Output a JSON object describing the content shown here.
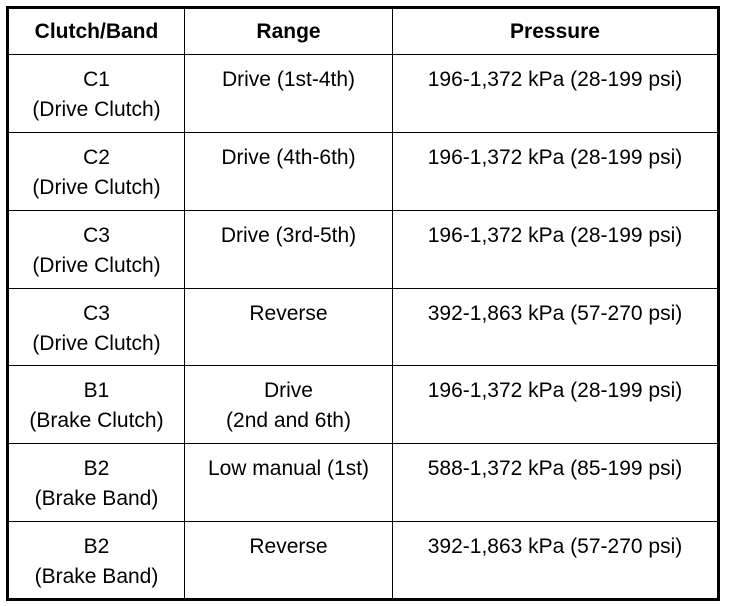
{
  "table": {
    "header": [
      "Clutch/Band",
      "Range",
      "Pressure"
    ],
    "rows": [
      [
        [
          "C1",
          "(Drive Clutch)"
        ],
        [
          "Drive (1st-4th)"
        ],
        [
          "196-1,372 kPa (28-199 psi)"
        ]
      ],
      [
        [
          "C2",
          "(Drive Clutch)"
        ],
        [
          "Drive (4th-6th)"
        ],
        [
          "196-1,372 kPa (28-199 psi)"
        ]
      ],
      [
        [
          "C3",
          "(Drive Clutch)"
        ],
        [
          "Drive (3rd-5th)"
        ],
        [
          "196-1,372 kPa (28-199 psi)"
        ]
      ],
      [
        [
          "C3",
          "(Drive Clutch)"
        ],
        [
          "Reverse"
        ],
        [
          "392-1,863 kPa (57-270 psi)"
        ]
      ],
      [
        [
          "B1",
          "(Brake Clutch)"
        ],
        [
          "Drive",
          "(2nd and 6th)"
        ],
        [
          "196-1,372 kPa (28-199 psi)"
        ]
      ],
      [
        [
          "B2",
          "(Brake Band)"
        ],
        [
          "Low manual (1st)"
        ],
        [
          "588-1,372 kPa (85-199 psi)"
        ]
      ],
      [
        [
          "B2",
          "(Brake Band)"
        ],
        [
          "Reverse"
        ],
        [
          "392-1,863 kPa (57-270 psi)"
        ]
      ]
    ]
  }
}
